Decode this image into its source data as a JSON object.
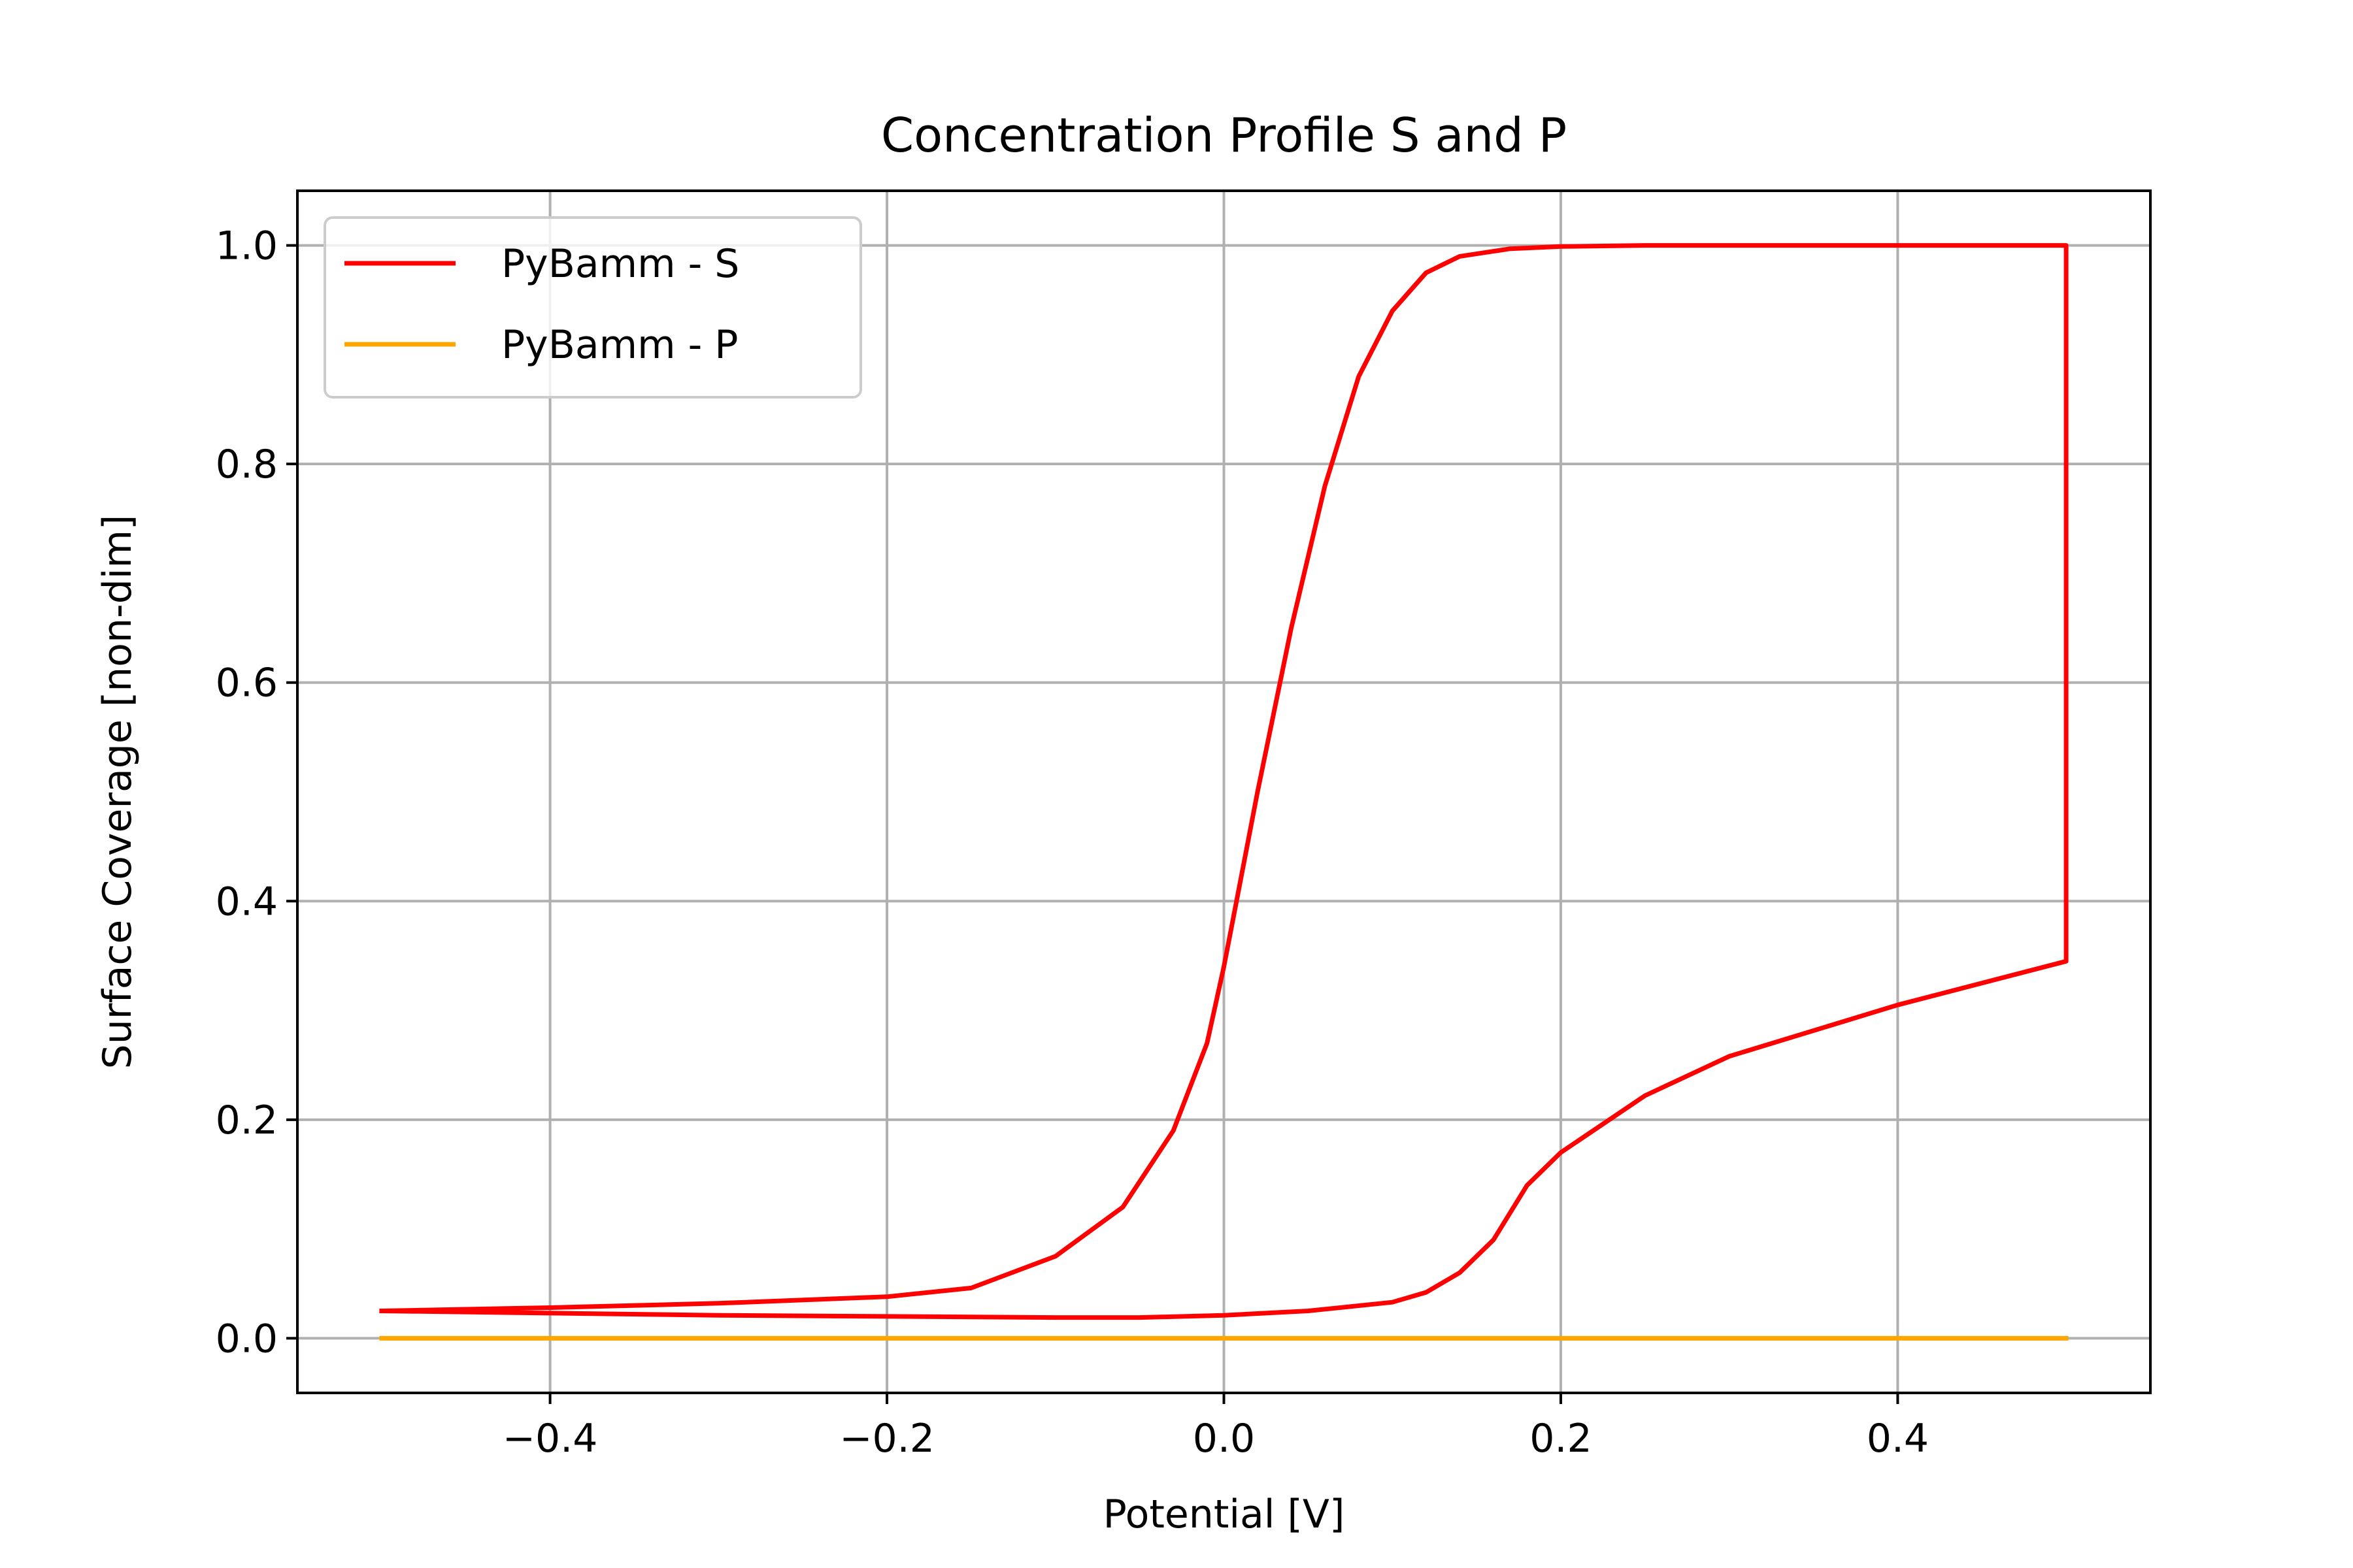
{
  "chart_data": {
    "type": "line",
    "title": "Concentration Profile S and P",
    "xlabel": "Potential [V]",
    "ylabel": "Surface Coverage [non-dim]",
    "xlim": [
      -0.55,
      0.55
    ],
    "ylim": [
      -0.05,
      1.05
    ],
    "xticks": [
      -0.4,
      -0.2,
      0.0,
      0.2,
      0.4
    ],
    "xtick_labels": [
      "−0.4",
      "−0.2",
      "0.0",
      "0.2",
      "0.4"
    ],
    "yticks": [
      0.0,
      0.2,
      0.4,
      0.6,
      0.8,
      1.0
    ],
    "ytick_labels": [
      "0.0",
      "0.2",
      "0.4",
      "0.6",
      "0.8",
      "1.0"
    ],
    "grid": true,
    "legend_position": "top-left",
    "series": [
      {
        "name": "PyBamm - S",
        "color": "#ff0000",
        "x": [
          -0.5,
          -0.4,
          -0.3,
          -0.2,
          -0.15,
          -0.1,
          -0.06,
          -0.03,
          -0.01,
          0.0,
          0.01,
          0.02,
          0.04,
          0.06,
          0.08,
          0.1,
          0.12,
          0.14,
          0.17,
          0.2,
          0.25,
          0.3,
          0.4,
          0.5,
          0.5,
          0.4,
          0.3,
          0.25,
          0.2,
          0.18,
          0.16,
          0.14,
          0.12,
          0.1,
          0.05,
          0.0,
          -0.05,
          -0.1,
          -0.2,
          -0.3,
          -0.4,
          -0.5
        ],
        "y": [
          0.025,
          0.028,
          0.032,
          0.038,
          0.046,
          0.075,
          0.12,
          0.19,
          0.27,
          0.34,
          0.42,
          0.5,
          0.65,
          0.78,
          0.88,
          0.94,
          0.975,
          0.99,
          0.997,
          0.999,
          1.0,
          1.0,
          1.0,
          1.0,
          0.345,
          0.305,
          0.258,
          0.222,
          0.17,
          0.14,
          0.09,
          0.06,
          0.042,
          0.033,
          0.025,
          0.021,
          0.019,
          0.019,
          0.02,
          0.021,
          0.023,
          0.025
        ]
      },
      {
        "name": "PyBamm - P",
        "color": "#ffa500",
        "x": [
          -0.5,
          0.5
        ],
        "y": [
          0.0,
          0.0
        ]
      }
    ]
  }
}
